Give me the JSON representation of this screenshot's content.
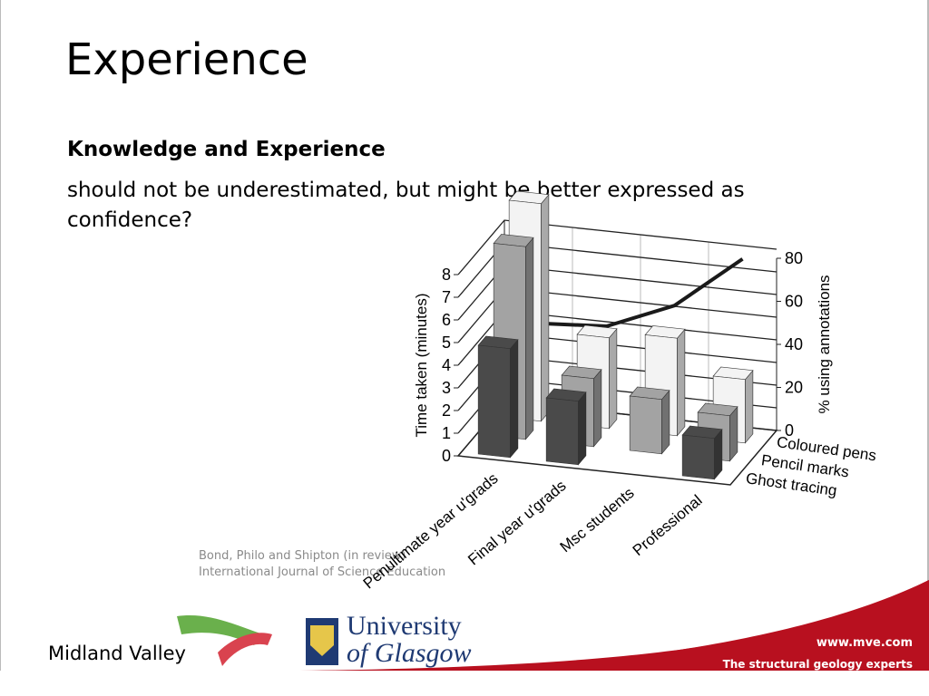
{
  "slide": {
    "title": "Experience",
    "heading": "Knowledge and Experience",
    "body": "should not be underestimated, but might be better expressed as confidence?",
    "citation": [
      "Bond, Philo and Shipton (in review)",
      "International Journal of Science Education"
    ],
    "footer": {
      "company": "Midland Valley",
      "university": [
        "University",
        "of Glasgow"
      ],
      "url": "www.mve.com",
      "tagline": "The structural geology experts"
    }
  },
  "chart_data": {
    "type": "bar3d",
    "categories": [
      "Penultimate year u'grads",
      "Final year u'grads",
      "Msc students",
      "Professional"
    ],
    "series": [
      {
        "name": "Ghost tracing",
        "color": "#4a4a4a",
        "values": [
          4.8,
          2.8,
          null,
          1.8
        ]
      },
      {
        "name": "Pencil marks",
        "color": "#a3a3a3",
        "values": [
          8.5,
          3,
          2.4,
          2
        ]
      },
      {
        "name": "Coloured pens",
        "color": "#f3f3f3",
        "values": [
          9.6,
          4,
          4.3,
          2.8
        ]
      }
    ],
    "line": {
      "axis": "y2",
      "color": "#1a1a1a",
      "values": [
        38,
        40,
        53,
        78
      ]
    },
    "ylabel": "Time taken (minutes)",
    "y2label": "% using annotations",
    "ylim": [
      0,
      8
    ],
    "yticks": [
      0,
      1,
      2,
      3,
      4,
      5,
      6,
      7,
      8
    ],
    "y2lim": [
      0,
      80
    ],
    "y2ticks": [
      0,
      20,
      40,
      60,
      80
    ],
    "grid": true
  }
}
